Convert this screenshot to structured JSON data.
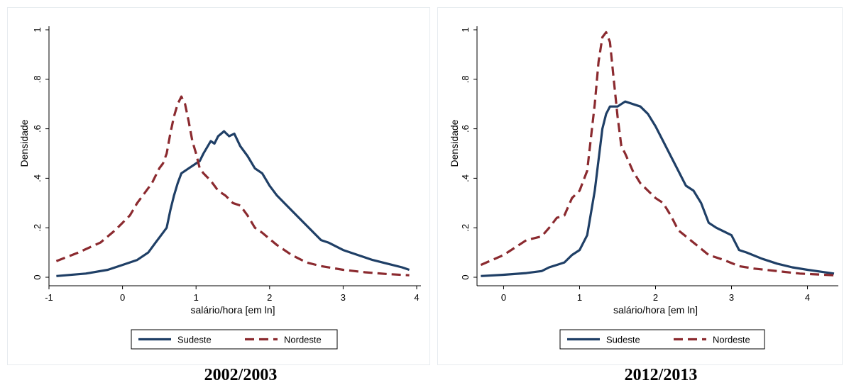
{
  "chart_data": [
    {
      "type": "line",
      "title": "2002/2003",
      "xlabel": "salário/hora [em ln]",
      "ylabel": "Densidade",
      "xlim": [
        -1,
        4
      ],
      "ylim": [
        0,
        1
      ],
      "x_ticks": [
        -1,
        0,
        1,
        2,
        3,
        4
      ],
      "x_tick_labels": [
        "-1",
        "0",
        "1",
        "2",
        "3",
        "4"
      ],
      "y_ticks": [
        0,
        0.2,
        0.4,
        0.6,
        0.8,
        1
      ],
      "y_tick_labels": [
        "0",
        ".2",
        ".4",
        ".6",
        ".8",
        "1"
      ],
      "grid": false,
      "legend": "bottom",
      "series": [
        {
          "name": "Sudeste",
          "color": "#1f3f66",
          "style": "solid",
          "x": [
            -0.9,
            -0.5,
            -0.2,
            0,
            0.2,
            0.35,
            0.45,
            0.55,
            0.6,
            0.65,
            0.7,
            0.75,
            0.8,
            0.9,
            1.0,
            1.05,
            1.1,
            1.2,
            1.25,
            1.3,
            1.38,
            1.45,
            1.52,
            1.6,
            1.7,
            1.8,
            1.9,
            2.0,
            2.1,
            2.2,
            2.4,
            2.6,
            2.7,
            2.8,
            3.0,
            3.2,
            3.4,
            3.6,
            3.8,
            3.9
          ],
          "y": [
            0.005,
            0.015,
            0.03,
            0.05,
            0.07,
            0.1,
            0.14,
            0.18,
            0.2,
            0.27,
            0.33,
            0.38,
            0.42,
            0.44,
            0.46,
            0.47,
            0.5,
            0.55,
            0.54,
            0.57,
            0.59,
            0.57,
            0.58,
            0.53,
            0.49,
            0.44,
            0.42,
            0.37,
            0.33,
            0.3,
            0.24,
            0.18,
            0.15,
            0.14,
            0.11,
            0.09,
            0.07,
            0.055,
            0.04,
            0.03
          ]
        },
        {
          "name": "Nordeste",
          "color": "#8b2a2f",
          "style": "dashed",
          "x": [
            -0.9,
            -0.6,
            -0.3,
            -0.1,
            0,
            0.1,
            0.2,
            0.3,
            0.4,
            0.5,
            0.55,
            0.6,
            0.65,
            0.7,
            0.75,
            0.8,
            0.85,
            0.9,
            0.95,
            1.0,
            1.05,
            1.1,
            1.2,
            1.3,
            1.4,
            1.5,
            1.6,
            1.7,
            1.8,
            1.9,
            2.1,
            2.3,
            2.5,
            2.7,
            3.0,
            3.3,
            3.6,
            3.9
          ],
          "y": [
            0.065,
            0.1,
            0.14,
            0.19,
            0.22,
            0.25,
            0.3,
            0.34,
            0.38,
            0.44,
            0.46,
            0.5,
            0.58,
            0.65,
            0.7,
            0.73,
            0.7,
            0.63,
            0.55,
            0.5,
            0.44,
            0.42,
            0.39,
            0.35,
            0.33,
            0.3,
            0.29,
            0.25,
            0.2,
            0.18,
            0.13,
            0.09,
            0.06,
            0.045,
            0.03,
            0.02,
            0.013,
            0.008
          ]
        }
      ]
    },
    {
      "type": "line",
      "title": "2012/2013",
      "xlabel": "salário/hora [em ln]",
      "ylabel": "Densidade",
      "xlim": [
        -0.35,
        4.35
      ],
      "ylim": [
        0,
        1
      ],
      "x_ticks": [
        0,
        1,
        2,
        3,
        4
      ],
      "x_tick_labels": [
        "0",
        "1",
        "2",
        "3",
        "4"
      ],
      "y_ticks": [
        0,
        0.2,
        0.4,
        0.6,
        0.8,
        1
      ],
      "y_tick_labels": [
        "0",
        ".2",
        ".4",
        ".6",
        ".8",
        "1"
      ],
      "grid": false,
      "legend": "bottom",
      "series": [
        {
          "name": "Sudeste",
          "color": "#1f3f66",
          "style": "solid",
          "x": [
            -0.3,
            0,
            0.3,
            0.5,
            0.6,
            0.7,
            0.8,
            0.9,
            1.0,
            1.1,
            1.2,
            1.3,
            1.35,
            1.4,
            1.5,
            1.6,
            1.7,
            1.8,
            1.9,
            2.0,
            2.1,
            2.2,
            2.3,
            2.4,
            2.5,
            2.6,
            2.7,
            2.8,
            3.0,
            3.1,
            3.2,
            3.4,
            3.6,
            3.8,
            4.0,
            4.35
          ],
          "y": [
            0.005,
            0.01,
            0.017,
            0.025,
            0.04,
            0.05,
            0.06,
            0.09,
            0.11,
            0.17,
            0.35,
            0.6,
            0.66,
            0.69,
            0.69,
            0.71,
            0.7,
            0.69,
            0.66,
            0.61,
            0.55,
            0.49,
            0.43,
            0.37,
            0.35,
            0.3,
            0.22,
            0.2,
            0.17,
            0.11,
            0.1,
            0.075,
            0.055,
            0.04,
            0.03,
            0.015
          ]
        },
        {
          "name": "Nordeste",
          "color": "#8b2a2f",
          "style": "dashed",
          "x": [
            -0.3,
            0,
            0.3,
            0.5,
            0.6,
            0.7,
            0.8,
            0.9,
            1.0,
            1.1,
            1.2,
            1.25,
            1.3,
            1.35,
            1.4,
            1.45,
            1.5,
            1.55,
            1.6,
            1.7,
            1.8,
            1.9,
            2.0,
            2.1,
            2.2,
            2.3,
            2.5,
            2.7,
            2.9,
            3.1,
            3.3,
            3.6,
            3.9,
            4.35
          ],
          "y": [
            0.05,
            0.09,
            0.15,
            0.165,
            0.2,
            0.24,
            0.25,
            0.32,
            0.35,
            0.43,
            0.7,
            0.87,
            0.97,
            0.99,
            0.95,
            0.8,
            0.65,
            0.53,
            0.5,
            0.43,
            0.38,
            0.35,
            0.32,
            0.3,
            0.25,
            0.19,
            0.14,
            0.09,
            0.07,
            0.045,
            0.035,
            0.025,
            0.015,
            0.008
          ]
        }
      ]
    }
  ]
}
